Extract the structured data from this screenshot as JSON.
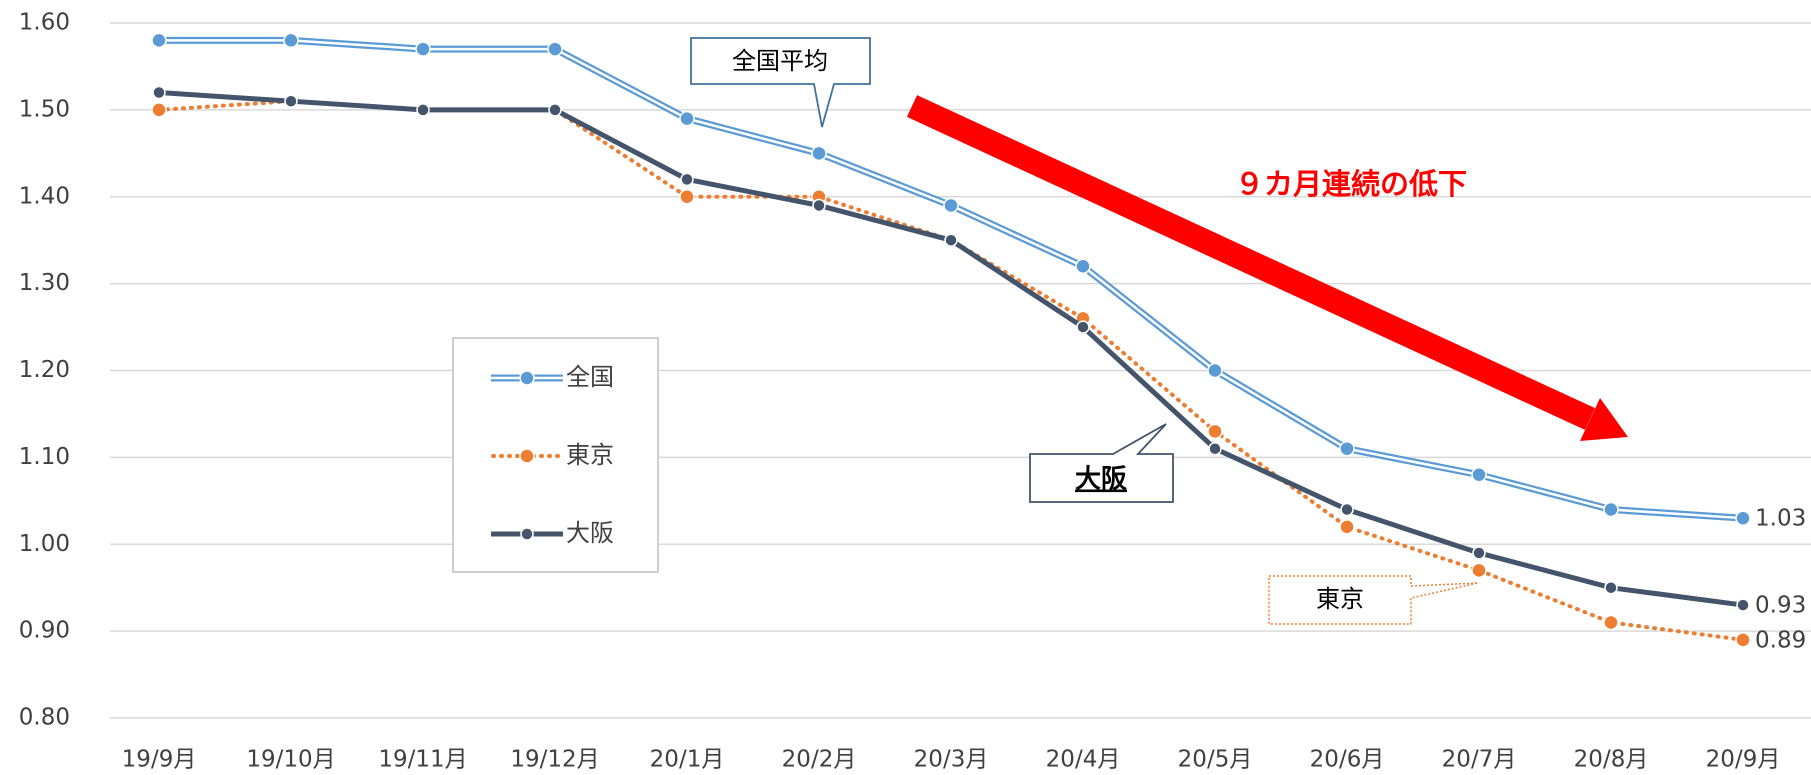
{
  "chart_data": {
    "type": "line",
    "categories": [
      "19/9月",
      "19/10月",
      "19/11月",
      "19/12月",
      "20/1月",
      "20/2月",
      "20/3月",
      "20/4月",
      "20/5月",
      "20/6月",
      "20/7月",
      "20/8月",
      "20/9月"
    ],
    "series": [
      {
        "name": "全国",
        "color": "#5b9bd5",
        "line_style": "double",
        "values": [
          1.58,
          1.58,
          1.57,
          1.57,
          1.49,
          1.45,
          1.39,
          1.32,
          1.2,
          1.11,
          1.08,
          1.04,
          1.03
        ]
      },
      {
        "name": "東京",
        "color": "#ed7d31",
        "line_style": "dotted",
        "values": [
          1.5,
          1.51,
          1.5,
          1.5,
          1.4,
          1.4,
          1.35,
          1.26,
          1.13,
          1.02,
          0.97,
          0.91,
          0.89
        ]
      },
      {
        "name": "大阪",
        "color": "#44546a",
        "line_style": "solid",
        "values": [
          1.52,
          1.51,
          1.5,
          1.5,
          1.42,
          1.39,
          1.35,
          1.25,
          1.11,
          1.04,
          0.99,
          0.95,
          0.93
        ]
      }
    ],
    "ylim": [
      0.8,
      1.6
    ],
    "yticks": [
      {
        "value": 0.8,
        "label": "0.80"
      },
      {
        "value": 0.9,
        "label": "0.90"
      },
      {
        "value": 1.0,
        "label": "1.00"
      },
      {
        "value": 1.1,
        "label": "1.10"
      },
      {
        "value": 1.2,
        "label": "1.20"
      },
      {
        "value": 1.3,
        "label": "1.30"
      },
      {
        "value": 1.4,
        "label": "1.40"
      },
      {
        "value": 1.5,
        "label": "1.50"
      },
      {
        "value": 1.6,
        "label": "1.60"
      }
    ],
    "grid": true,
    "legend": "left",
    "annotations": [
      {
        "text": "全国平均"
      },
      {
        "text": "９カ月連続の低下"
      },
      {
        "text": "大阪"
      },
      {
        "text": "東京"
      }
    ]
  }
}
